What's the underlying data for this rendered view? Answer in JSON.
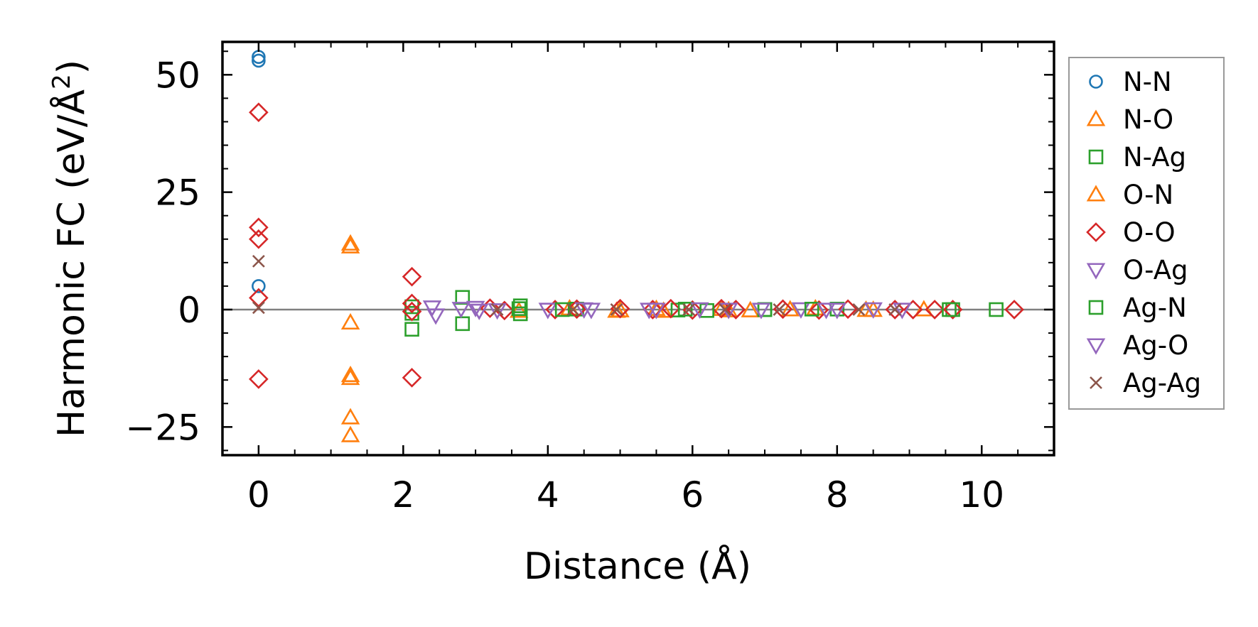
{
  "chart_data": {
    "type": "scatter",
    "title": "",
    "xlabel": "Distance (Å)",
    "ylabel_main": "Harmonic FC (eV/Å",
    "ylabel_sup": "2",
    "ylabel_close": ")",
    "xlim": [
      -0.5,
      11.0
    ],
    "ylim": [
      -31,
      57
    ],
    "xticks": [
      0,
      2,
      4,
      6,
      8,
      10
    ],
    "xtick_labels": [
      "0",
      "2",
      "4",
      "6",
      "8",
      "10"
    ],
    "yticks": [
      -25,
      0,
      25,
      50
    ],
    "ytick_labels": [
      "−25",
      "0",
      "25",
      "50"
    ],
    "zero_line": 0,
    "grid": false,
    "legend_position": "outside-right",
    "series": [
      {
        "name": "N-N",
        "marker": "circle",
        "color": "#1f77b4",
        "points": [
          [
            0,
            53.8
          ],
          [
            0,
            53.0
          ],
          [
            0,
            5.0
          ]
        ]
      },
      {
        "name": "N-O",
        "marker": "triangle-up",
        "color": "#ff7f0e",
        "points": [
          [
            1.27,
            14.0
          ],
          [
            1.27,
            13.4
          ],
          [
            1.27,
            -2.8
          ],
          [
            1.27,
            -14.0
          ],
          [
            1.27,
            -14.6
          ],
          [
            1.27,
            -23.0
          ],
          [
            1.27,
            -26.8
          ],
          [
            3.6,
            -0.3
          ],
          [
            4.3,
            0.2
          ],
          [
            5.0,
            -0.2
          ],
          [
            5.6,
            -0.3
          ],
          [
            6.4,
            0.1
          ],
          [
            6.8,
            -0.2
          ],
          [
            7.7,
            0.2
          ],
          [
            8.5,
            -0.1
          ]
        ]
      },
      {
        "name": "N-Ag",
        "marker": "square",
        "color": "#2ca02c",
        "points": [
          [
            2.12,
            0.6
          ],
          [
            2.12,
            -0.8
          ],
          [
            2.12,
            -4.2
          ],
          [
            2.82,
            2.6
          ],
          [
            2.82,
            -3.0
          ],
          [
            3.62,
            0.8
          ],
          [
            3.62,
            -0.9
          ],
          [
            4.4,
            0.1
          ],
          [
            5.8,
            -0.1
          ],
          [
            7.0,
            0.0
          ],
          [
            8.0,
            0.1
          ],
          [
            9.6,
            0.0
          ],
          [
            10.2,
            0.0
          ]
        ]
      },
      {
        "name": "O-N",
        "marker": "triangle-up",
        "color": "#ff7f0e",
        "points": [
          [
            4.95,
            -0.3
          ],
          [
            5.5,
            0.1
          ],
          [
            6.5,
            -0.2
          ],
          [
            7.35,
            0.0
          ],
          [
            8.4,
            -0.1
          ],
          [
            9.2,
            0.0
          ]
        ]
      },
      {
        "name": "O-O",
        "marker": "diamond",
        "color": "#d62728",
        "points": [
          [
            0,
            42.0
          ],
          [
            0,
            17.5
          ],
          [
            0,
            15.0
          ],
          [
            0,
            2.5
          ],
          [
            0,
            -14.8
          ],
          [
            2.12,
            7.0
          ],
          [
            2.12,
            1.3
          ],
          [
            2.12,
            -0.4
          ],
          [
            2.12,
            -14.5
          ],
          [
            3.2,
            0.3
          ],
          [
            3.4,
            -0.2
          ],
          [
            4.1,
            0.0
          ],
          [
            4.4,
            0.1
          ],
          [
            5.0,
            0.2
          ],
          [
            5.45,
            0.0
          ],
          [
            5.7,
            0.2
          ],
          [
            6.0,
            -0.1
          ],
          [
            6.4,
            0.2
          ],
          [
            6.6,
            0.0
          ],
          [
            7.25,
            0.1
          ],
          [
            7.75,
            -0.1
          ],
          [
            8.15,
            0.1
          ],
          [
            8.8,
            0.0
          ],
          [
            9.05,
            0.0
          ],
          [
            9.35,
            0.0
          ],
          [
            9.6,
            0.0
          ],
          [
            10.45,
            0.0
          ]
        ]
      },
      {
        "name": "O-Ag",
        "marker": "triangle-down",
        "color": "#9467bd",
        "points": [
          [
            2.4,
            0.5
          ],
          [
            2.45,
            -1.2
          ],
          [
            2.8,
            0.2
          ],
          [
            3.05,
            -0.2
          ],
          [
            4.0,
            0.0
          ],
          [
            4.6,
            0.0
          ],
          [
            5.5,
            0.0
          ],
          [
            6.5,
            0.0
          ],
          [
            7.5,
            0.1
          ],
          [
            8.0,
            0.0
          ],
          [
            8.9,
            0.0
          ]
        ]
      },
      {
        "name": "Ag-N",
        "marker": "square",
        "color": "#2ca02c",
        "points": [
          [
            3.6,
            0.2
          ],
          [
            4.2,
            0.0
          ],
          [
            5.9,
            0.1
          ],
          [
            6.2,
            -0.2
          ],
          [
            7.0,
            0.0
          ],
          [
            7.65,
            0.1
          ],
          [
            9.55,
            0.0
          ]
        ]
      },
      {
        "name": "Ag-O",
        "marker": "triangle-down",
        "color": "#9467bd",
        "points": [
          [
            3.0,
            0.4
          ],
          [
            3.3,
            -0.1
          ],
          [
            4.5,
            0.1
          ],
          [
            5.4,
            0.0
          ],
          [
            6.1,
            0.1
          ],
          [
            6.95,
            0.0
          ],
          [
            7.85,
            0.0
          ],
          [
            8.5,
            0.1
          ]
        ]
      },
      {
        "name": "Ag-Ag",
        "marker": "x",
        "color": "#8c564b",
        "points": [
          [
            0,
            10.3
          ],
          [
            0,
            0.4
          ],
          [
            3.3,
            0.0
          ],
          [
            4.35,
            0.0
          ],
          [
            4.95,
            0.0
          ],
          [
            5.95,
            0.0
          ],
          [
            6.45,
            0.0
          ],
          [
            7.2,
            0.0
          ],
          [
            8.3,
            0.0
          ],
          [
            8.8,
            0.0
          ]
        ]
      }
    ]
  }
}
